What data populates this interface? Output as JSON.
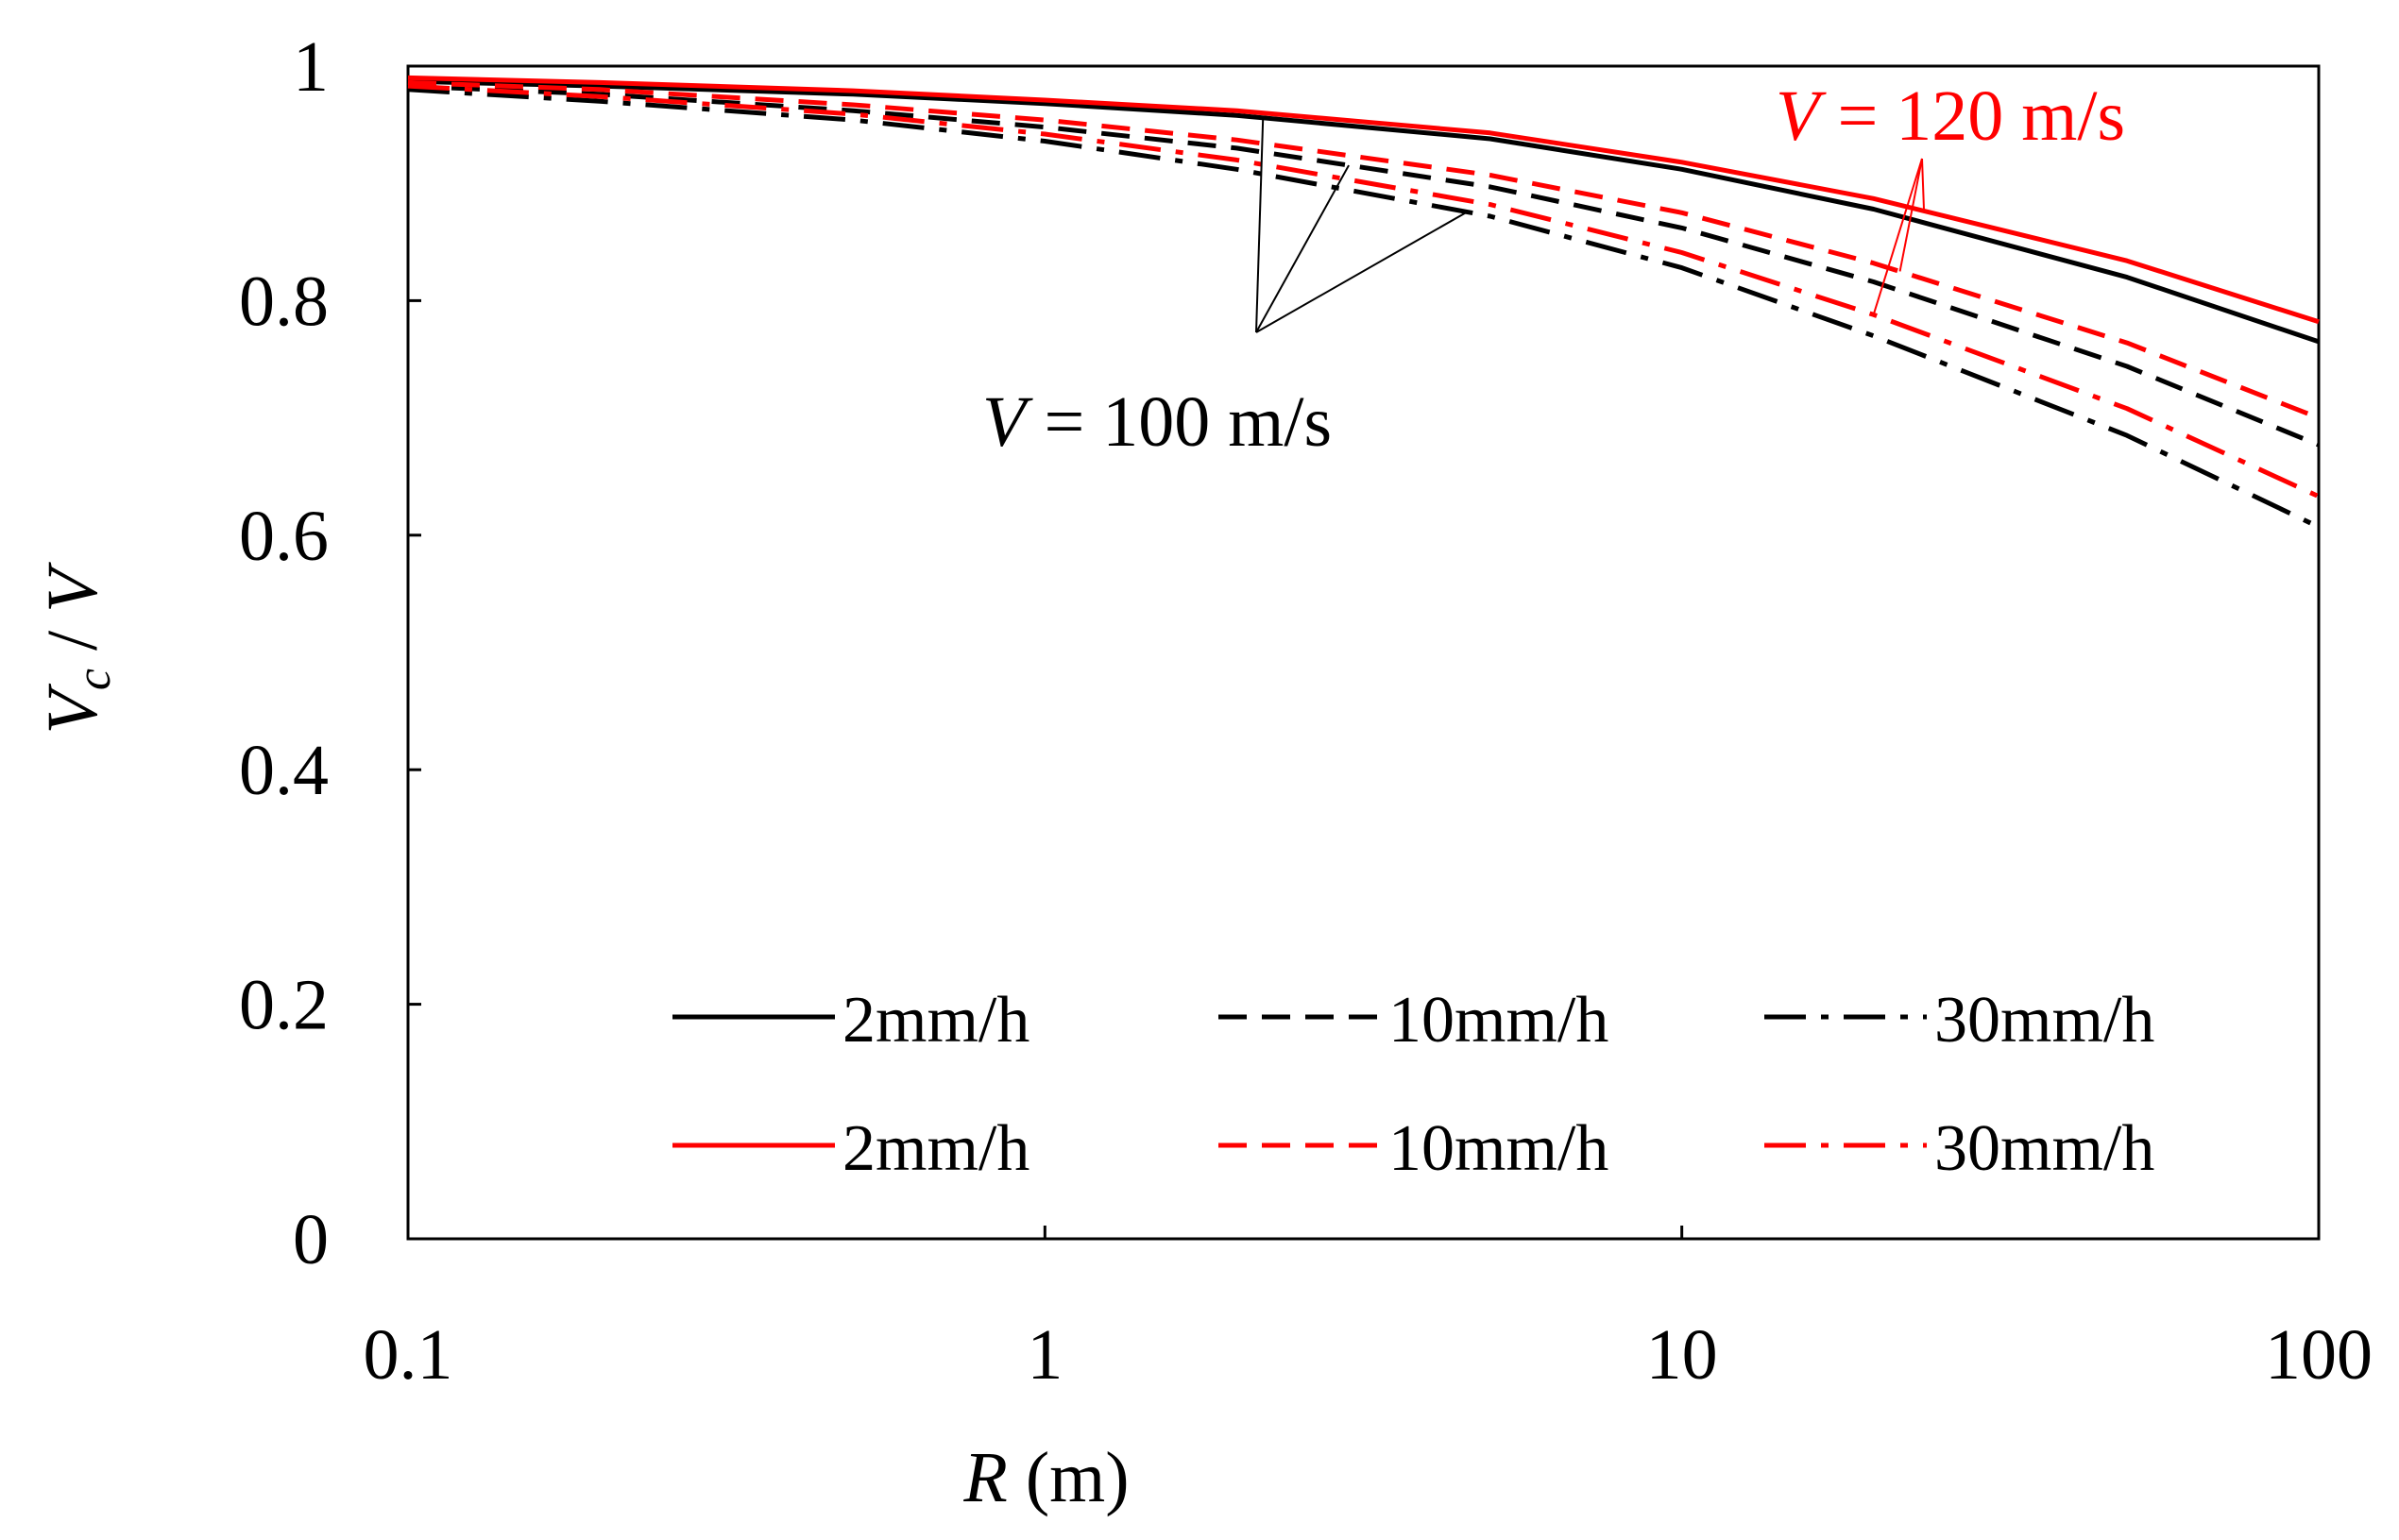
{
  "chart_data": {
    "type": "line",
    "xscale": "log",
    "xlim": [
      0.1,
      100
    ],
    "ylim": [
      0,
      1
    ],
    "xticks": [
      0.1,
      1,
      10,
      100
    ],
    "xtick_labels": [
      "0.1",
      "1",
      "10",
      "100"
    ],
    "yticks": [
      0,
      0.2,
      0.4,
      0.6,
      0.8,
      1
    ],
    "ytick_labels": [
      "0",
      "0.2",
      "0.4",
      "0.6",
      "0.8",
      "1"
    ],
    "xlabel": {
      "var": "R",
      "rest": " (m)"
    },
    "ylabel": {
      "var": "V",
      "sub": "c",
      "rest": " / ",
      "var2": "V"
    },
    "x": [
      0.1,
      0.2,
      0.5,
      1,
      2,
      5,
      10,
      20,
      50,
      100
    ],
    "series": [
      {
        "name": "2mm/h",
        "group": "V = 100 m/s",
        "color": "#000000",
        "dash": "solid",
        "values": [
          0.987,
          0.983,
          0.976,
          0.968,
          0.958,
          0.938,
          0.912,
          0.878,
          0.82,
          0.765
        ]
      },
      {
        "name": "10mm/h",
        "group": "V = 100 m/s",
        "color": "#000000",
        "dash": "dashed",
        "values": [
          0.983,
          0.976,
          0.962,
          0.948,
          0.93,
          0.897,
          0.862,
          0.816,
          0.744,
          0.677
        ]
      },
      {
        "name": "30mm/h",
        "group": "V = 100 m/s",
        "color": "#000000",
        "dash": "dashdot",
        "values": [
          0.98,
          0.97,
          0.954,
          0.936,
          0.912,
          0.872,
          0.828,
          0.77,
          0.685,
          0.607
        ]
      },
      {
        "name": "2mm/h",
        "group": "V = 120 m/s",
        "color": "#ff0000",
        "dash": "solid",
        "values": [
          0.99,
          0.986,
          0.979,
          0.971,
          0.962,
          0.943,
          0.918,
          0.887,
          0.834,
          0.782
        ]
      },
      {
        "name": "10mm/h",
        "group": "V = 120 m/s",
        "color": "#ff0000",
        "dash": "dashed",
        "values": [
          0.986,
          0.98,
          0.967,
          0.954,
          0.937,
          0.907,
          0.875,
          0.832,
          0.764,
          0.7
        ]
      },
      {
        "name": "30mm/h",
        "group": "V = 120 m/s",
        "color": "#ff0000",
        "dash": "dashdot",
        "values": [
          0.983,
          0.974,
          0.959,
          0.942,
          0.92,
          0.882,
          0.841,
          0.788,
          0.708,
          0.633
        ]
      }
    ],
    "annotations": [
      {
        "prefix": "V",
        "text": " = 100 m/s",
        "color": "#000000",
        "targets": [
          0,
          1,
          2
        ]
      },
      {
        "prefix": "V",
        "text": " = 120 m/s",
        "color": "#ff0000",
        "targets": [
          3,
          4,
          5
        ]
      }
    ],
    "legend": {
      "position": "bottom-right",
      "columns": 3
    }
  }
}
